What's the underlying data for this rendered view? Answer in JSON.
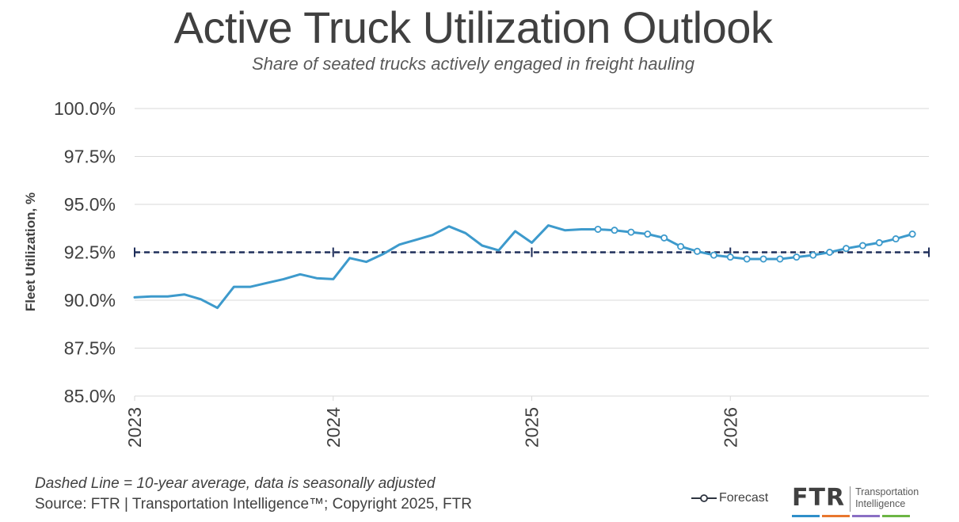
{
  "title": "Active Truck Utilization Outlook",
  "subtitle": "Share of seated trucks actively engaged in freight hauling",
  "footer": {
    "note": "Dashed Line = 10-year average, data is seasonally adjusted",
    "source": "Source: FTR | Transportation Intelligence™; Copyright 2025, FTR"
  },
  "logo": {
    "mark": "FTR",
    "line1": "Transportation",
    "line2": "Intelligence",
    "bar_colors": [
      "#2f8fc9",
      "#e8772e",
      "#8a6fc4",
      "#6cb544"
    ]
  },
  "colors": {
    "series": "#3d9acc",
    "average": "#1f2e5a",
    "grid": "#d9d9d9",
    "text": "#404040"
  },
  "chart_data": {
    "type": "line",
    "title": "Active Truck Utilization Outlook",
    "subtitle": "Share of seated trucks actively engaged in freight hauling",
    "ylabel": "Fleet Utilization, %",
    "xlabel": "",
    "ylim": [
      85.0,
      100.0
    ],
    "yticks": [
      85.0,
      87.5,
      90.0,
      92.5,
      95.0,
      97.5,
      100.0
    ],
    "ytick_labels": [
      "85.0%",
      "87.5%",
      "90.0%",
      "92.5%",
      "95.0%",
      "97.5%",
      "100.0%"
    ],
    "xlim": [
      "2023-01",
      "2027-01"
    ],
    "xtick_labels": [
      {
        "date": "2023-01",
        "label": "2023"
      },
      {
        "date": "2024-01",
        "label": "2024"
      },
      {
        "date": "2025-01",
        "label": "2025"
      },
      {
        "date": "2026-01",
        "label": "2026"
      }
    ],
    "grid": true,
    "legend_position": "bottom-right",
    "average_line": {
      "value": 92.5,
      "style": "dashed"
    },
    "series": [
      {
        "kind": "actual",
        "x": [
          "2023-01",
          "2023-02",
          "2023-03",
          "2023-04",
          "2023-05",
          "2023-06",
          "2023-07",
          "2023-08",
          "2023-09",
          "2023-10",
          "2023-11",
          "2023-12",
          "2024-01",
          "2024-02",
          "2024-03",
          "2024-04",
          "2024-05",
          "2024-06",
          "2024-07",
          "2024-08",
          "2024-09",
          "2024-10",
          "2024-11",
          "2024-12",
          "2025-01",
          "2025-02",
          "2025-03",
          "2025-04",
          "2025-05"
        ],
        "values": [
          90.15,
          90.2,
          90.2,
          90.3,
          90.05,
          89.6,
          90.7,
          90.7,
          90.9,
          91.1,
          91.35,
          91.15,
          91.1,
          92.2,
          92.0,
          92.4,
          92.9,
          93.15,
          93.4,
          93.85,
          93.5,
          92.85,
          92.6,
          93.6,
          93.0,
          93.9,
          93.65,
          93.7,
          93.7
        ]
      },
      {
        "kind": "forecast",
        "name": "Forecast",
        "x": [
          "2025-05",
          "2025-06",
          "2025-07",
          "2025-08",
          "2025-09",
          "2025-10",
          "2025-11",
          "2025-12",
          "2026-01",
          "2026-02",
          "2026-03",
          "2026-04",
          "2026-05",
          "2026-06",
          "2026-07",
          "2026-08",
          "2026-09",
          "2026-10",
          "2026-11",
          "2026-12"
        ],
        "values": [
          93.7,
          93.65,
          93.55,
          93.45,
          93.25,
          92.8,
          92.55,
          92.35,
          92.25,
          92.15,
          92.15,
          92.15,
          92.25,
          92.35,
          92.5,
          92.7,
          92.85,
          93.0,
          93.2,
          93.45
        ]
      }
    ]
  }
}
